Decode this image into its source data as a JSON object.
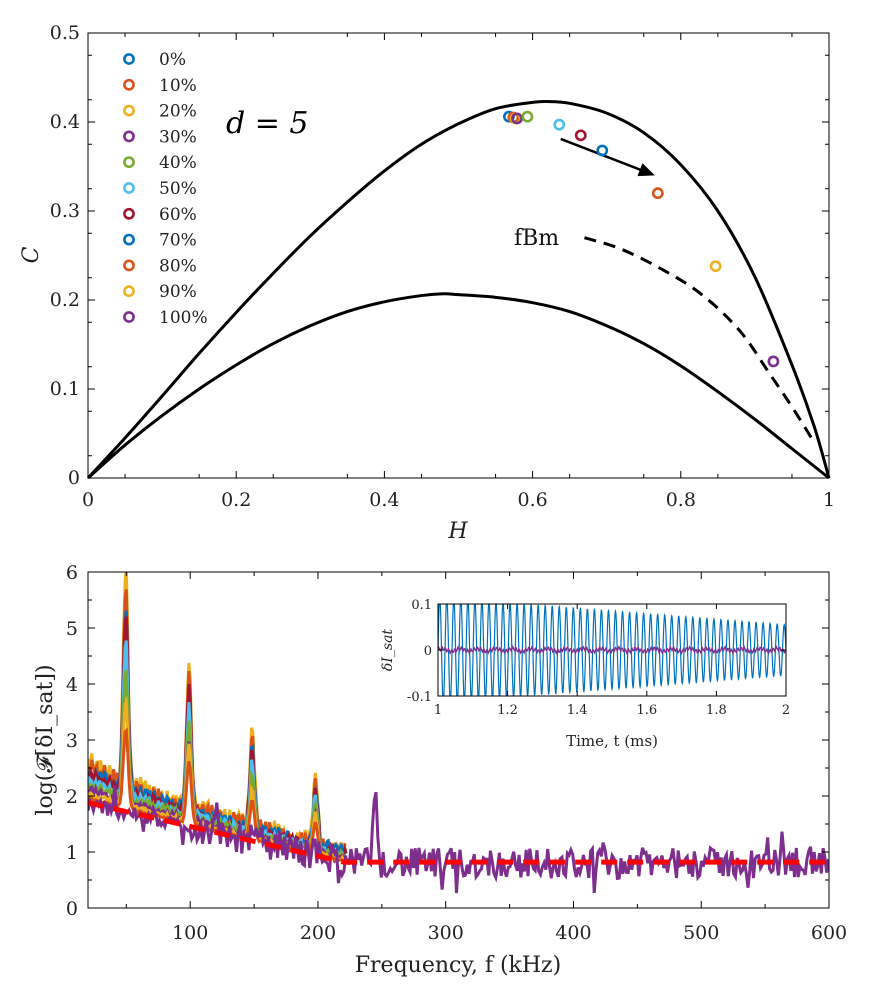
{
  "chart_data": [
    {
      "type": "scatter",
      "xlabel": "H",
      "ylabel": "C",
      "xlim": [
        0,
        1
      ],
      "ylim": [
        0,
        0.5
      ],
      "x_ticks": [
        "0",
        "0.2",
        "0.4",
        "0.6",
        "0.8",
        "1"
      ],
      "y_ticks": [
        "0",
        "0.1",
        "0.2",
        "0.3",
        "0.4",
        "0.5"
      ],
      "grid": false,
      "legend_position": "top-left",
      "annotation": "d = 5",
      "curve_label": "fBm",
      "series": [
        {
          "name": "0%",
          "color": "#0072BD",
          "x": 0.568,
          "y": 0.406
        },
        {
          "name": "10%",
          "color": "#D95319",
          "x": 0.574,
          "y": 0.405
        },
        {
          "name": "20%",
          "color": "#EDB120",
          "x": 0.577,
          "y": 0.404
        },
        {
          "name": "30%",
          "color": "#7E2F8E",
          "x": 0.579,
          "y": 0.404
        },
        {
          "name": "40%",
          "color": "#77AC30",
          "x": 0.593,
          "y": 0.406
        },
        {
          "name": "50%",
          "color": "#4DBEEE",
          "x": 0.636,
          "y": 0.397
        },
        {
          "name": "60%",
          "color": "#A2142F",
          "x": 0.665,
          "y": 0.385
        },
        {
          "name": "70%",
          "color": "#0072BD",
          "x": 0.694,
          "y": 0.368
        },
        {
          "name": "80%",
          "color": "#D95319",
          "x": 0.769,
          "y": 0.32
        },
        {
          "name": "90%",
          "color": "#EDB120",
          "x": 0.847,
          "y": 0.238
        },
        {
          "name": "100%",
          "color": "#7E2F8E",
          "x": 0.925,
          "y": 0.131
        }
      ],
      "upper_boundary": {
        "x": [
          0,
          0.05,
          0.1,
          0.15,
          0.2,
          0.25,
          0.3,
          0.35,
          0.4,
          0.45,
          0.5,
          0.55,
          0.6,
          0.62,
          0.65,
          0.7,
          0.75,
          0.8,
          0.85,
          0.9,
          0.95,
          0.98,
          1
        ],
        "y": [
          0,
          0.045,
          0.092,
          0.14,
          0.186,
          0.23,
          0.272,
          0.31,
          0.345,
          0.375,
          0.398,
          0.415,
          0.422,
          0.423,
          0.421,
          0.41,
          0.388,
          0.352,
          0.3,
          0.226,
          0.127,
          0.058,
          0
        ]
      },
      "lower_boundary": {
        "x": [
          0,
          0.05,
          0.1,
          0.15,
          0.2,
          0.25,
          0.3,
          0.35,
          0.4,
          0.45,
          0.48,
          0.5,
          0.55,
          0.6,
          0.65,
          0.7,
          0.75,
          0.8,
          0.85,
          0.9,
          0.95,
          1
        ],
        "y": [
          0,
          0.037,
          0.07,
          0.1,
          0.127,
          0.151,
          0.171,
          0.187,
          0.198,
          0.205,
          0.207,
          0.206,
          0.203,
          0.197,
          0.187,
          0.171,
          0.151,
          0.126,
          0.097,
          0.066,
          0.033,
          0
        ]
      },
      "fbm_curve": {
        "x": [
          0.67,
          0.72,
          0.78,
          0.83,
          0.88,
          0.92,
          0.95,
          0.98
        ],
        "y": [
          0.27,
          0.257,
          0.232,
          0.205,
          0.165,
          0.117,
          0.08,
          0.04
        ]
      },
      "arrow": {
        "from": [
          0.638,
          0.381
        ],
        "to": [
          0.765,
          0.34
        ]
      }
    },
    {
      "type": "line",
      "xlabel": "Frequency, f (kHz)",
      "ylabel": "log(𝓕[δI_sat])",
      "xlim": [
        20,
        600
      ],
      "ylim": [
        0,
        6
      ],
      "x_ticks": [
        "100",
        "200",
        "300",
        "400",
        "500",
        "600"
      ],
      "y_ticks": [
        "0",
        "1",
        "2",
        "3",
        "4",
        "5",
        "6"
      ],
      "fundamental_kHz": 49.5,
      "harmonic_peaks": [
        {
          "f": 49.5,
          "envelope": [
            2.7,
            3.2,
            3.7,
            4.2,
            4.7,
            5.2,
            5.6,
            5.95
          ]
        },
        {
          "f": 99,
          "envelope": [
            2.2,
            2.6,
            2.9,
            3.2,
            3.5,
            3.8,
            4.0,
            4.2
          ]
        },
        {
          "f": 148.5,
          "envelope": [
            1.6,
            1.9,
            2.1,
            2.3,
            2.5,
            2.7,
            2.85,
            3.0
          ]
        },
        {
          "f": 198,
          "envelope": [
            1.3,
            1.5,
            1.65,
            1.8,
            1.9,
            2.0,
            2.1,
            2.2
          ]
        }
      ],
      "spectra_colors": [
        "#0072BD",
        "#D95319",
        "#EDB120",
        "#7E2F8E",
        "#77AC30",
        "#4DBEEE",
        "#A2142F",
        "#0072BD",
        "#D95319",
        "#EDB120"
      ],
      "purple_spectrum_color": "#7E2F8E",
      "purple_spike": {
        "f": 245,
        "value": 2.15
      },
      "baseline_fit": {
        "color": "#FF0000",
        "f": [
          20,
          220,
          600
        ],
        "value": [
          1.88,
          0.82,
          0.82
        ]
      },
      "noise_floor_mean": 0.8,
      "inset": {
        "xlabel": "Time, t (ms)",
        "ylabel": "δI_sat",
        "xlim": [
          1,
          2
        ],
        "ylim": [
          -0.1,
          0.1
        ],
        "x_ticks": [
          "1",
          "1.2",
          "1.4",
          "1.6",
          "1.8",
          "2"
        ],
        "y_ticks": [
          "0.1",
          "0",
          "-0.1"
        ],
        "oscillation_period_ms": 0.0202,
        "amplitude_start": 0.115,
        "amplitude_end": 0.055,
        "oscillation_color": "#0072BD",
        "flat_trace_color": "#7E2F8E"
      }
    }
  ]
}
